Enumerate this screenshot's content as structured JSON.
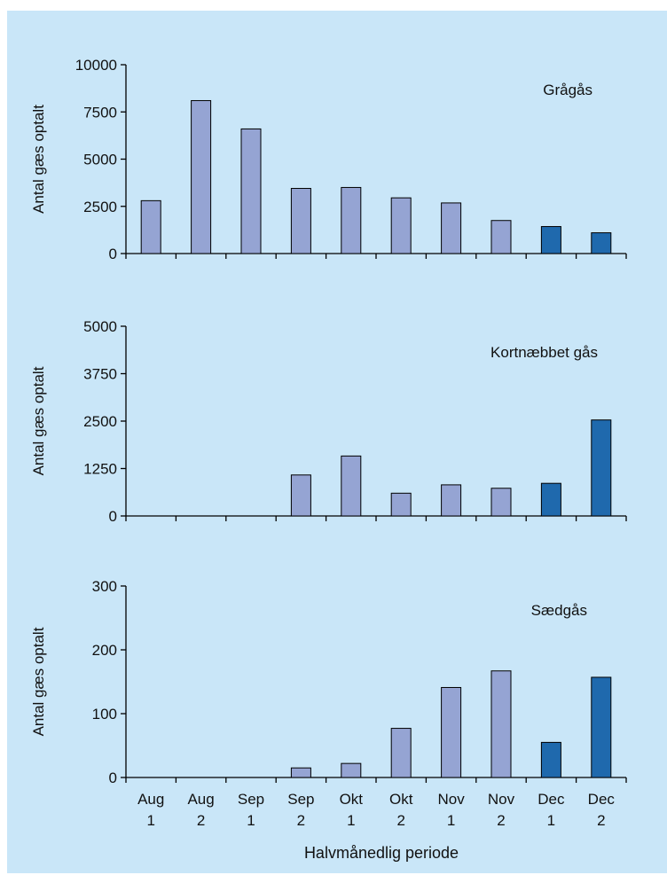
{
  "background_color": "#c9e6f8",
  "bar_colors": {
    "light": "#95a4d3",
    "dark": "#1f69ad"
  },
  "x_axis": {
    "categories": [
      "Aug 1",
      "Aug 2",
      "Sep 1",
      "Sep 2",
      "Okt 1",
      "Okt 2",
      "Nov 1",
      "Nov 2",
      "Dec 1",
      "Dec 2"
    ],
    "category_lines": [
      [
        "Aug",
        "1"
      ],
      [
        "Aug",
        "2"
      ],
      [
        "Sep",
        "1"
      ],
      [
        "Sep",
        "2"
      ],
      [
        "Okt",
        "1"
      ],
      [
        "Okt",
        "2"
      ],
      [
        "Nov",
        "1"
      ],
      [
        "Nov",
        "2"
      ],
      [
        "Dec",
        "1"
      ],
      [
        "Dec",
        "2"
      ]
    ],
    "title": "Halvmånedlig periode"
  },
  "chart_data": [
    {
      "type": "bar",
      "title": "Grågås",
      "ylabel": "Antal gæs optalt",
      "ylim": [
        0,
        10000
      ],
      "yticks": [
        0,
        2500,
        5000,
        7500,
        10000
      ],
      "categories": [
        "Aug 1",
        "Aug 2",
        "Sep 1",
        "Sep 2",
        "Okt 1",
        "Okt 2",
        "Nov 1",
        "Nov 2",
        "Dec 1",
        "Dec 2"
      ],
      "values": [
        2800,
        8100,
        6600,
        3450,
        3500,
        2950,
        2680,
        1750,
        1430,
        1100
      ],
      "highlighted": [
        false,
        false,
        false,
        false,
        false,
        false,
        false,
        false,
        true,
        true
      ],
      "grid": false
    },
    {
      "type": "bar",
      "title": "Kortnæbbet gås",
      "ylabel": "Antal gæs optalt",
      "ylim": [
        0,
        5000
      ],
      "yticks": [
        0,
        1250,
        2500,
        3750,
        5000
      ],
      "categories": [
        "Aug 1",
        "Aug 2",
        "Sep 1",
        "Sep 2",
        "Okt 1",
        "Okt 2",
        "Nov 1",
        "Nov 2",
        "Dec 1",
        "Dec 2"
      ],
      "values": [
        0,
        0,
        0,
        1080,
        1580,
        600,
        820,
        730,
        860,
        2530
      ],
      "highlighted": [
        false,
        false,
        false,
        false,
        false,
        false,
        false,
        false,
        true,
        true
      ],
      "grid": false
    },
    {
      "type": "bar",
      "title": "Sædgås",
      "ylabel": "Antal gæs optalt",
      "ylim": [
        0,
        300
      ],
      "yticks": [
        0,
        100,
        200,
        300
      ],
      "categories": [
        "Aug 1",
        "Aug 2",
        "Sep 1",
        "Sep 2",
        "Okt 1",
        "Okt 2",
        "Nov 1",
        "Nov 2",
        "Dec 1",
        "Dec 2"
      ],
      "values": [
        0,
        0,
        0,
        15,
        22,
        77,
        141,
        167,
        55,
        157
      ],
      "highlighted": [
        false,
        false,
        false,
        false,
        false,
        false,
        false,
        false,
        true,
        true
      ],
      "grid": false
    }
  ]
}
